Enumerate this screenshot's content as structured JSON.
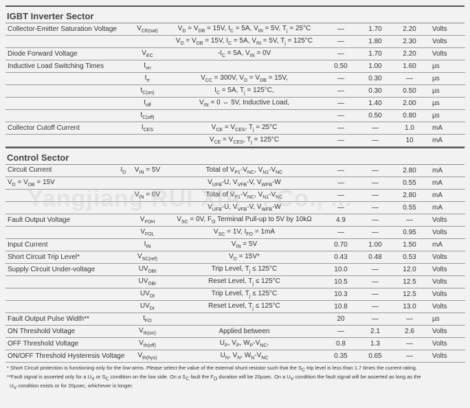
{
  "watermark": "Yangjiang RUI XIA ... Co., ...",
  "sections": [
    {
      "title": "IGBT Inverter Sector",
      "rows": [
        {
          "param": "Collector-Emitter Saturation Voltage",
          "sym": "V<sub>CE(sat)</sub>",
          "cond": "V<sub>D</sub> = V<sub>DB</sub> = 15V, I<sub>C</sub> = 5A, V<sub>IN</sub> = 5V, T<sub>j</sub> = 25°C",
          "min": "—",
          "typ": "1.70",
          "max": "2.20",
          "unit": "Volts"
        },
        {
          "param": "",
          "sym": "",
          "cond": "V<sub>D</sub> = V<sub>DB</sub> = 15V, I<sub>C</sub> = 5A, V<sub>IN</sub> = 5V, T<sub>j</sub> = 125°C",
          "min": "—",
          "typ": "1.80",
          "max": "2.30",
          "unit": "Volts"
        },
        {
          "param": "Diode Forward Voltage",
          "sym": "V<sub>EC</sub>",
          "cond": "-I<sub>C</sub> = 5A,  V<sub>IN</sub> = 0V",
          "min": "—",
          "typ": "1.70",
          "max": "2.20",
          "unit": "Volts"
        },
        {
          "param": "Inductive Load Switching Times",
          "sym": "t<sub>on</sub>",
          "cond": "",
          "min": "0.50",
          "typ": "1.00",
          "max": "1.60",
          "unit": "µs"
        },
        {
          "param": "",
          "sym": "t<sub>rr</sub>",
          "cond": "V<sub>CC</sub> = 300V, V<sub>D</sub> = V<sub>DB</sub> = 15V,",
          "min": "—",
          "typ": "0.30",
          "max": "—",
          "unit": "µs"
        },
        {
          "param": "",
          "sym": "t<sub>C(on)</sub>",
          "cond": "I<sub>C</sub> = 5A, T<sub>j</sub> = 125°C,",
          "min": "—",
          "typ": "0.30",
          "max": "0.50",
          "unit": "µs"
        },
        {
          "param": "",
          "sym": "t<sub>off</sub>",
          "cond": "V<sub>IN</sub> = 0 ⇔ 5V, Inductive Load,",
          "min": "—",
          "typ": "1.40",
          "max": "2.00",
          "unit": "µs"
        },
        {
          "param": "",
          "sym": "t<sub>C(off)</sub>",
          "cond": "",
          "min": "—",
          "typ": "0.50",
          "max": "0.80",
          "unit": "µs"
        },
        {
          "param": "Collector Cutoff Current",
          "sym": "I<sub>CES</sub>",
          "cond": "V<sub>CE</sub> = V<sub>CES</sub>, T<sub>j</sub> = 25°C",
          "min": "—",
          "typ": "—",
          "max": "1.0",
          "unit": "mA"
        },
        {
          "param": "",
          "sym": "",
          "cond": "V<sub>CE</sub> = V<sub>CES</sub>, T<sub>j</sub> = 125°C",
          "min": "—",
          "typ": "—",
          "max": "10",
          "unit": "mA"
        }
      ]
    },
    {
      "title": "Control Sector",
      "rows": [
        {
          "param": "Circuit Current &nbsp;&nbsp;&nbsp;&nbsp;&nbsp;&nbsp;&nbsp;&nbsp;&nbsp;&nbsp;&nbsp;&nbsp;&nbsp;&nbsp;&nbsp;&nbsp;&nbsp;&nbsp;&nbsp;&nbsp;&nbsp;&nbsp;&nbsp;&nbsp;&nbsp;&nbsp;&nbsp;&nbsp;&nbsp;&nbsp;&nbsp;&nbsp;&nbsp;&nbsp; I<sub>D</sub>",
          "sym": "V<sub>IN</sub> = 5V",
          "cond": "Total of V<sub>P1</sub>-V<sub>NC</sub>, V<sub>N1</sub>-V<sub>NC</sub>",
          "min": "—",
          "typ": "—",
          "max": "2.80",
          "unit": "mA"
        },
        {
          "param": "V<sub>D</sub> = V<sub>DB</sub> = 15V",
          "sym": "",
          "cond": "V<sub>UFB</sub>-U, V<sub>VFB</sub>-V, V<sub>WFB</sub>-W",
          "min": "—",
          "typ": "—",
          "max": "0.55",
          "unit": "mA"
        },
        {
          "param": "",
          "sym": "V<sub>IN</sub> = 0V",
          "cond": "Total of V<sub>P1</sub>-V<sub>NC</sub>, V<sub>N1</sub>-V<sub>NC</sub>",
          "min": "—",
          "typ": "—",
          "max": "2.80",
          "unit": "mA"
        },
        {
          "param": "",
          "sym": "",
          "cond": "V<sub>UFB</sub>-U, V<sub>VFB</sub>-V, V<sub>WFB</sub>-W",
          "min": "—",
          "typ": "—",
          "max": "0.55",
          "unit": "mA"
        },
        {
          "param": "Fault Output Voltage",
          "sym": "V<sub>FOH</sub>",
          "cond": "V<sub>SC</sub> = 0V, F<sub>O</sub> Terminal Pull-up to 5V by 10kΩ",
          "min": "4.9",
          "typ": "—",
          "max": "—",
          "unit": "Volts"
        },
        {
          "param": "",
          "sym": "V<sub>FOL</sub>",
          "cond": "V<sub>SC</sub> = 1V, I<sub>FO</sub> = 1mA",
          "min": "—",
          "typ": "—",
          "max": "0.95",
          "unit": "Volts"
        },
        {
          "param": "Input Current",
          "sym": "I<sub>IN</sub>",
          "cond": "V<sub>IN</sub> = 5V",
          "min": "0.70",
          "typ": "1.00",
          "max": "1.50",
          "unit": "mA"
        },
        {
          "param": "Short Circuit Trip Level*",
          "sym": "V<sub>SC(ref)</sub>",
          "cond": "V<sub>D</sub> = 15V*",
          "min": "0.43",
          "typ": "0.48",
          "max": "0.53",
          "unit": "Volts"
        },
        {
          "param": "Supply Circuit Under-voltage",
          "sym": "UV<sub>DBt</sub>",
          "cond": "Trip Level, T<sub>j</sub> ≤ 125°C",
          "min": "10.0",
          "typ": "—",
          "max": "12.0",
          "unit": "Volts"
        },
        {
          "param": "",
          "sym": "UV<sub>DBr</sub>",
          "cond": "Reset Level, T<sub>j</sub> ≤ 125°C",
          "min": "10.5",
          "typ": "—",
          "max": "12.5",
          "unit": "Volts"
        },
        {
          "param": "",
          "sym": "UV<sub>Dt</sub>",
          "cond": "Trip Level, T<sub>j</sub> ≤ 125°C",
          "min": "10.3",
          "typ": "—",
          "max": "12.5",
          "unit": "Volts"
        },
        {
          "param": "",
          "sym": "UV<sub>Dr</sub>",
          "cond": "Reset Level, T<sub>j</sub> ≤ 125°C",
          "min": "10.8",
          "typ": "—",
          "max": "13.0",
          "unit": "Volts"
        },
        {
          "param": "Fault Output Pulse Width**",
          "sym": "t<sub>FO</sub>",
          "cond": "",
          "min": "20",
          "typ": "—",
          "max": "—",
          "unit": "µs"
        },
        {
          "param": "ON Threshold Voltage",
          "sym": "V<sub>th(on)</sub>",
          "cond": "Applied between",
          "min": "—",
          "typ": "2.1",
          "max": "2.6",
          "unit": "Volts"
        },
        {
          "param": "OFF Threshold Voltage",
          "sym": "V<sub>th(off)</sub>",
          "cond": "U<sub>P</sub>, V<sub>P</sub>, W<sub>P</sub>-V<sub>NC</sub>,",
          "min": "0.8",
          "typ": "1.3",
          "max": "—",
          "unit": "Volts"
        },
        {
          "param": "ON/OFF Threshold Hysteresis Voltage",
          "sym": "V<sub>th(hys)</sub>",
          "cond": "U<sub>N</sub>, V<sub>N</sub>, W<sub>N</sub>-V<sub>NC</sub>",
          "min": "0.35",
          "typ": "0.65",
          "max": "—",
          "unit": "Volts"
        }
      ]
    }
  ],
  "footnotes": [
    "* Short Circuit  protection is functioning only for the low-arms. Please select the value of the external shunt resistor such that the S<sub>C</sub> trip level is less than 1.7 times the current rating.",
    "**Fault signal is asserted only for a U<sub>V</sub> or S<sub>C</sub> condition on the low side.  On a S<sub>C</sub> fault the F<sub>O</sub> duration will be 20µsec.  On a U<sub>V</sub> condition the fault signal will be asserted as long as the",
    "&nbsp;&nbsp;U<sub>V</sub> condition exists or for 20µsec, whichever is longer."
  ]
}
